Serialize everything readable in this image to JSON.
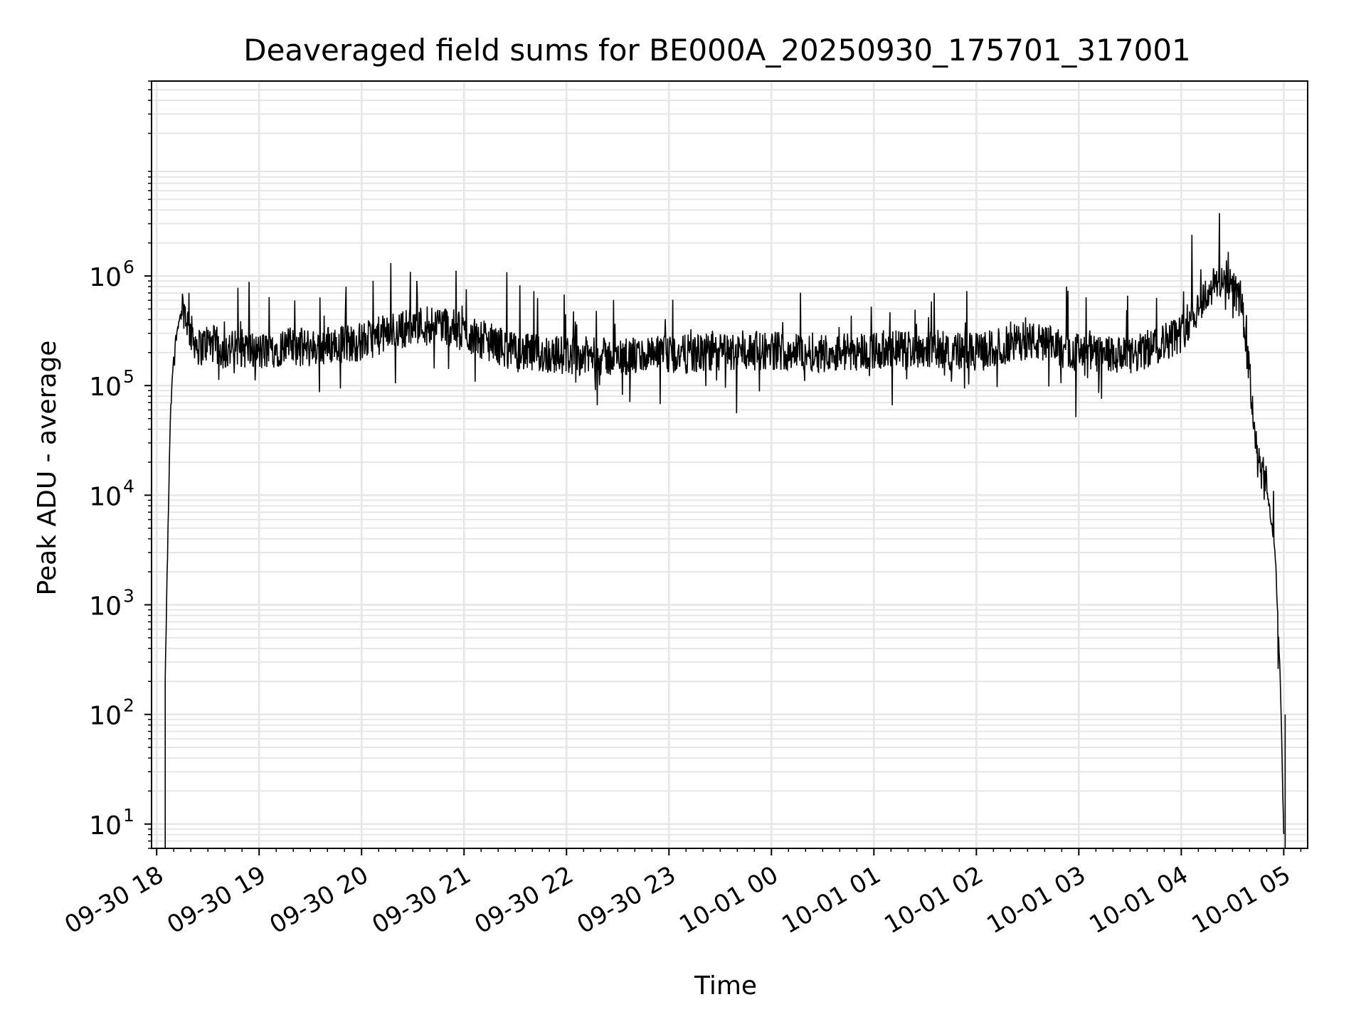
{
  "chart_data": {
    "type": "line",
    "title": "Deaveraged field sums for BE000A_20250930_175701_317001",
    "xlabel": "Time",
    "ylabel": "Peak ADU - average",
    "yscale": "log",
    "ylim": [
      6,
      60000000
    ],
    "xlim": [
      "2025-09-30 17:57",
      "2025-10-01 05:14"
    ],
    "grid": "major and minor",
    "line_color": "#000000",
    "x_ticks": [
      {
        "value": "2025-09-30 18:00",
        "label": "09-30 18"
      },
      {
        "value": "2025-09-30 19:00",
        "label": "09-30 19"
      },
      {
        "value": "2025-09-30 20:00",
        "label": "09-30 20"
      },
      {
        "value": "2025-09-30 21:00",
        "label": "09-30 21"
      },
      {
        "value": "2025-09-30 22:00",
        "label": "09-30 22"
      },
      {
        "value": "2025-09-30 23:00",
        "label": "09-30 23"
      },
      {
        "value": "2025-10-01 00:00",
        "label": "10-01 00"
      },
      {
        "value": "2025-10-01 01:00",
        "label": "10-01 01"
      },
      {
        "value": "2025-10-01 02:00",
        "label": "10-01 02"
      },
      {
        "value": "2025-10-01 03:00",
        "label": "10-01 03"
      },
      {
        "value": "2025-10-01 04:00",
        "label": "10-01 04"
      },
      {
        "value": "2025-10-01 05:00",
        "label": "10-01 05"
      }
    ],
    "y_ticks": [
      {
        "value": 10,
        "base": "10",
        "exp": "1"
      },
      {
        "value": 100,
        "base": "10",
        "exp": "2"
      },
      {
        "value": 1000,
        "base": "10",
        "exp": "3"
      },
      {
        "value": 10000,
        "base": "10",
        "exp": "4"
      },
      {
        "value": 100000,
        "base": "10",
        "exp": "5"
      },
      {
        "value": 1000000,
        "base": "10",
        "exp": "6"
      }
    ],
    "series": [
      {
        "x": [
          "2025-09-30 18:05",
          "2025-09-30 18:06",
          "2025-09-30 18:08",
          "2025-09-30 18:10",
          "2025-09-30 18:13",
          "2025-09-30 18:16",
          "2025-09-30 18:20",
          "2025-09-30 18:25",
          "2025-09-30 18:30",
          "2025-09-30 18:35",
          "2025-09-30 18:40",
          "2025-09-30 18:50",
          "2025-09-30 19:00",
          "2025-09-30 19:15",
          "2025-09-30 19:30",
          "2025-09-30 19:45",
          "2025-09-30 20:00",
          "2025-09-30 20:15",
          "2025-09-30 20:30",
          "2025-09-30 20:45",
          "2025-09-30 21:00",
          "2025-09-30 21:15",
          "2025-09-30 21:30",
          "2025-09-30 22:00",
          "2025-09-30 22:30",
          "2025-09-30 23:00",
          "2025-09-30 23:30",
          "2025-10-01 00:00",
          "2025-10-01 00:30",
          "2025-10-01 01:00",
          "2025-10-01 01:30",
          "2025-10-01 02:00",
          "2025-10-01 02:30",
          "2025-10-01 03:00",
          "2025-10-01 03:30",
          "2025-10-01 04:00",
          "2025-10-01 04:15",
          "2025-10-01 04:25",
          "2025-10-01 04:35",
          "2025-10-01 04:40",
          "2025-10-01 04:45",
          "2025-10-01 04:50",
          "2025-10-01 04:55",
          "2025-10-01 04:58",
          "2025-10-01 05:00"
        ],
        "y": [
          200,
          1500,
          50000,
          200000,
          400000,
          500000,
          300000,
          220000,
          250000,
          230000,
          210000,
          220000,
          200000,
          230000,
          220000,
          240000,
          250000,
          300000,
          350000,
          380000,
          300000,
          250000,
          200000,
          190000,
          180000,
          190000,
          200000,
          210000,
          200000,
          210000,
          220000,
          200000,
          260000,
          200000,
          180000,
          300000,
          700000,
          1000000,
          600000,
          120000,
          20000,
          12000,
          3000,
          200,
          8
        ]
      }
    ]
  }
}
